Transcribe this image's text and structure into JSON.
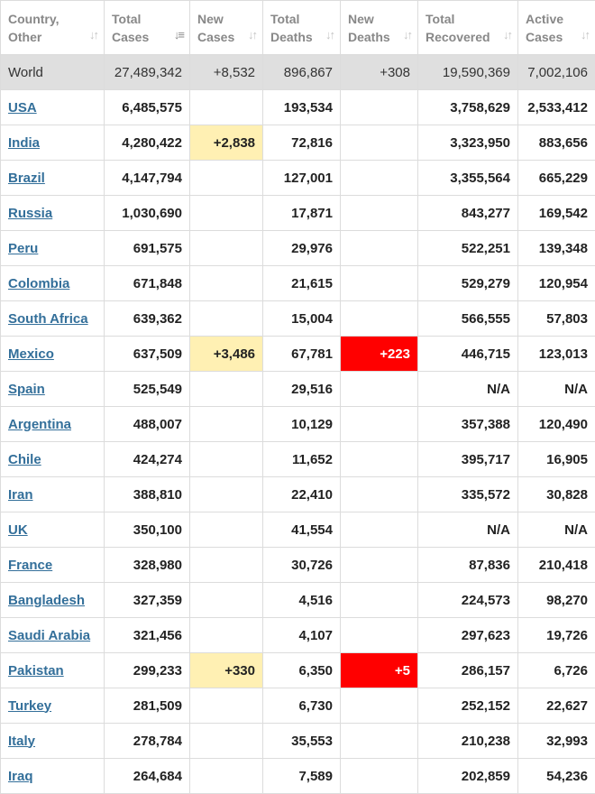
{
  "columns": [
    {
      "label_line1": "Country,",
      "label_line2": "Other",
      "sort_icon": "sort-both-icon",
      "active": false
    },
    {
      "label_line1": "Total",
      "label_line2": "Cases",
      "sort_icon": "sort-desc-icon",
      "active": true
    },
    {
      "label_line1": "New",
      "label_line2": "Cases",
      "sort_icon": "sort-both-icon",
      "active": false
    },
    {
      "label_line1": "Total",
      "label_line2": "Deaths",
      "sort_icon": "sort-both-icon",
      "active": false
    },
    {
      "label_line1": "New",
      "label_line2": "Deaths",
      "sort_icon": "sort-both-icon",
      "active": false
    },
    {
      "label_line1": "Total",
      "label_line2": "Recovered",
      "sort_icon": "sort-both-icon",
      "active": false
    },
    {
      "label_line1": "Active",
      "label_line2": "Cases",
      "sort_icon": "sort-both-icon",
      "active": false
    }
  ],
  "colors": {
    "new_cases_highlight": "#fff0b3",
    "new_deaths_highlight": "#ff0000",
    "link": "#336f9a",
    "world_row": "#dfdfdf"
  },
  "world": {
    "country": "World",
    "total_cases": "27,489,342",
    "new_cases": "+8,532",
    "total_deaths": "896,867",
    "new_deaths": "+308",
    "total_recovered": "19,590,369",
    "active_cases": "7,002,106"
  },
  "rows": [
    {
      "country": "USA",
      "total_cases": "6,485,575",
      "new_cases": "",
      "total_deaths": "193,534",
      "new_deaths": "",
      "total_recovered": "3,758,629",
      "active_cases": "2,533,412"
    },
    {
      "country": "India",
      "total_cases": "4,280,422",
      "new_cases": "+2,838",
      "total_deaths": "72,816",
      "new_deaths": "",
      "total_recovered": "3,323,950",
      "active_cases": "883,656"
    },
    {
      "country": "Brazil",
      "total_cases": "4,147,794",
      "new_cases": "",
      "total_deaths": "127,001",
      "new_deaths": "",
      "total_recovered": "3,355,564",
      "active_cases": "665,229"
    },
    {
      "country": "Russia",
      "total_cases": "1,030,690",
      "new_cases": "",
      "total_deaths": "17,871",
      "new_deaths": "",
      "total_recovered": "843,277",
      "active_cases": "169,542"
    },
    {
      "country": "Peru",
      "total_cases": "691,575",
      "new_cases": "",
      "total_deaths": "29,976",
      "new_deaths": "",
      "total_recovered": "522,251",
      "active_cases": "139,348"
    },
    {
      "country": "Colombia",
      "total_cases": "671,848",
      "new_cases": "",
      "total_deaths": "21,615",
      "new_deaths": "",
      "total_recovered": "529,279",
      "active_cases": "120,954"
    },
    {
      "country": "South Africa",
      "total_cases": "639,362",
      "new_cases": "",
      "total_deaths": "15,004",
      "new_deaths": "",
      "total_recovered": "566,555",
      "active_cases": "57,803"
    },
    {
      "country": "Mexico",
      "total_cases": "637,509",
      "new_cases": "+3,486",
      "total_deaths": "67,781",
      "new_deaths": "+223",
      "total_recovered": "446,715",
      "active_cases": "123,013"
    },
    {
      "country": "Spain",
      "total_cases": "525,549",
      "new_cases": "",
      "total_deaths": "29,516",
      "new_deaths": "",
      "total_recovered": "N/A",
      "active_cases": "N/A"
    },
    {
      "country": "Argentina",
      "total_cases": "488,007",
      "new_cases": "",
      "total_deaths": "10,129",
      "new_deaths": "",
      "total_recovered": "357,388",
      "active_cases": "120,490"
    },
    {
      "country": "Chile",
      "total_cases": "424,274",
      "new_cases": "",
      "total_deaths": "11,652",
      "new_deaths": "",
      "total_recovered": "395,717",
      "active_cases": "16,905"
    },
    {
      "country": "Iran",
      "total_cases": "388,810",
      "new_cases": "",
      "total_deaths": "22,410",
      "new_deaths": "",
      "total_recovered": "335,572",
      "active_cases": "30,828"
    },
    {
      "country": "UK",
      "total_cases": "350,100",
      "new_cases": "",
      "total_deaths": "41,554",
      "new_deaths": "",
      "total_recovered": "N/A",
      "active_cases": "N/A"
    },
    {
      "country": "France",
      "total_cases": "328,980",
      "new_cases": "",
      "total_deaths": "30,726",
      "new_deaths": "",
      "total_recovered": "87,836",
      "active_cases": "210,418"
    },
    {
      "country": "Bangladesh",
      "total_cases": "327,359",
      "new_cases": "",
      "total_deaths": "4,516",
      "new_deaths": "",
      "total_recovered": "224,573",
      "active_cases": "98,270"
    },
    {
      "country": "Saudi Arabia",
      "total_cases": "321,456",
      "new_cases": "",
      "total_deaths": "4,107",
      "new_deaths": "",
      "total_recovered": "297,623",
      "active_cases": "19,726"
    },
    {
      "country": "Pakistan",
      "total_cases": "299,233",
      "new_cases": "+330",
      "total_deaths": "6,350",
      "new_deaths": "+5",
      "total_recovered": "286,157",
      "active_cases": "6,726"
    },
    {
      "country": "Turkey",
      "total_cases": "281,509",
      "new_cases": "",
      "total_deaths": "6,730",
      "new_deaths": "",
      "total_recovered": "252,152",
      "active_cases": "22,627"
    },
    {
      "country": "Italy",
      "total_cases": "278,784",
      "new_cases": "",
      "total_deaths": "35,553",
      "new_deaths": "",
      "total_recovered": "210,238",
      "active_cases": "32,993"
    },
    {
      "country": "Iraq",
      "total_cases": "264,684",
      "new_cases": "",
      "total_deaths": "7,589",
      "new_deaths": "",
      "total_recovered": "202,859",
      "active_cases": "54,236"
    }
  ]
}
